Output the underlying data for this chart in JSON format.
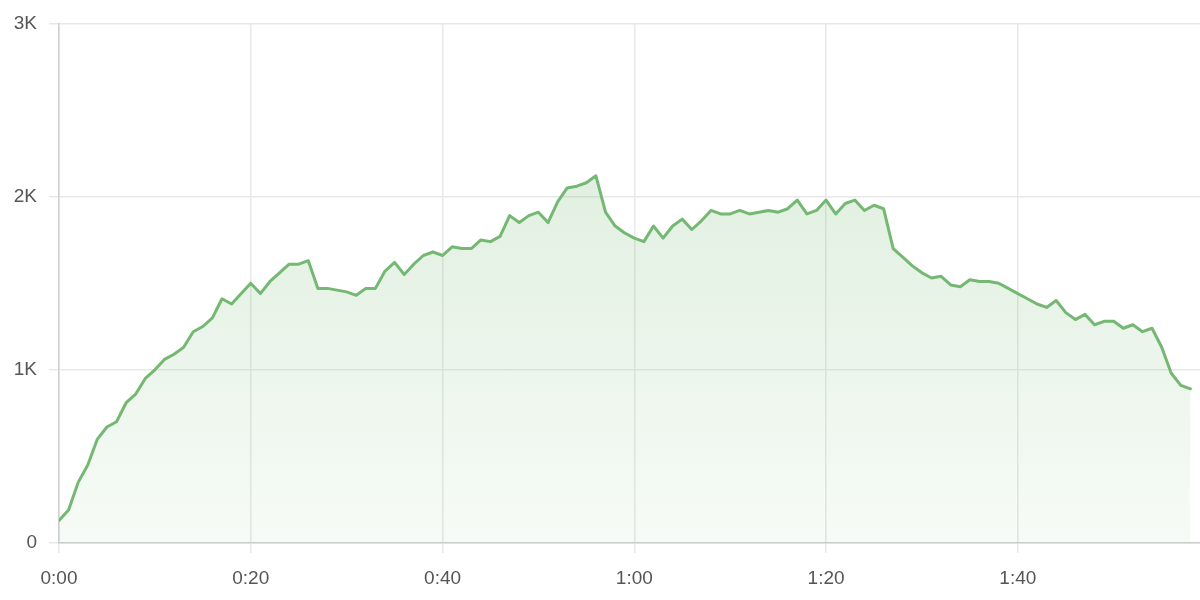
{
  "chart_data": {
    "type": "area",
    "x": [
      0,
      0.0167,
      0.0333,
      0.05,
      0.0667,
      0.0833,
      0.1,
      0.1167,
      0.1333,
      0.15,
      0.1667,
      0.1833,
      0.2,
      0.2167,
      0.2333,
      0.25,
      0.2667,
      0.2833,
      0.3,
      0.3167,
      0.3333,
      0.35,
      0.3667,
      0.3833,
      0.4,
      0.4167,
      0.4333,
      0.45,
      0.4667,
      0.4833,
      0.5,
      0.5167,
      0.5333,
      0.55,
      0.5667,
      0.5833,
      0.6,
      0.6167,
      0.6333,
      0.65,
      0.6667,
      0.6833,
      0.7,
      0.7167,
      0.7333,
      0.75,
      0.7667,
      0.7833,
      0.8,
      0.8167,
      0.8333,
      0.85,
      0.8667,
      0.8833,
      0.9,
      0.9167,
      0.9333,
      0.95,
      0.9667,
      0.9833,
      1,
      1.0167,
      1.0333,
      1.05,
      1.0667,
      1.0833,
      1.1,
      1.1167,
      1.1333,
      1.15,
      1.1667,
      1.1833,
      1.2,
      1.2167,
      1.2333,
      1.25,
      1.2667,
      1.2833,
      1.3,
      1.3167,
      1.3333,
      1.35,
      1.3667,
      1.3833,
      1.4,
      1.4167,
      1.4333,
      1.45,
      1.4667,
      1.4833,
      1.5,
      1.5167,
      1.5333,
      1.55,
      1.5667,
      1.5833,
      1.6,
      1.6167,
      1.6333,
      1.65,
      1.6667,
      1.6833,
      1.7,
      1.7167,
      1.7333,
      1.75,
      1.7667,
      1.7833,
      1.8,
      1.8167,
      1.8333,
      1.85,
      1.8667,
      1.8833,
      1.9,
      1.9167,
      1.9333,
      1.95,
      1.9667
    ],
    "series": [
      {
        "color": "#74b873",
        "values": [
          130,
          190,
          350,
          450,
          600,
          670,
          700,
          810,
          860,
          950,
          1000,
          1060,
          1090,
          1130,
          1220,
          1250,
          1300,
          1410,
          1380,
          1440,
          1500,
          1440,
          1510,
          1560,
          1610,
          1610,
          1630,
          1470,
          1470,
          1460,
          1450,
          1430,
          1470,
          1470,
          1570,
          1620,
          1550,
          1610,
          1660,
          1680,
          1660,
          1710,
          1700,
          1700,
          1750,
          1740,
          1770,
          1890,
          1850,
          1890,
          1910,
          1850,
          1970,
          2050,
          2060,
          2080,
          2120,
          1910,
          1830,
          1790,
          1760,
          1740,
          1830,
          1760,
          1830,
          1870,
          1810,
          1860,
          1920,
          1900,
          1900,
          1920,
          1900,
          1910,
          1920,
          1910,
          1930,
          1980,
          1900,
          1920,
          1980,
          1900,
          1960,
          1980,
          1920,
          1950,
          1930,
          1700,
          1650,
          1600,
          1560,
          1530,
          1540,
          1490,
          1480,
          1520,
          1510,
          1510,
          1500,
          1470,
          1440,
          1410,
          1380,
          1360,
          1400,
          1330,
          1290,
          1320,
          1260,
          1280,
          1280,
          1240,
          1260,
          1220,
          1240,
          1130,
          980,
          910,
          890
        ]
      }
    ],
    "xlim": [
      0,
      1.9833
    ],
    "xticks": [
      {
        "value": 0,
        "label": "0:00"
      },
      {
        "value": 0.3333,
        "label": "0:20"
      },
      {
        "value": 0.6667,
        "label": "0:40"
      },
      {
        "value": 1,
        "label": "1:00"
      },
      {
        "value": 1.3333,
        "label": "1:20"
      },
      {
        "value": 1.6667,
        "label": "1:40"
      }
    ],
    "ylim": [
      0,
      3000
    ],
    "yticks": [
      0,
      {
        "value": 1000,
        "label": "1K"
      },
      {
        "value": 2000,
        "label": "2K"
      },
      {
        "value": 3000,
        "label": "3K"
      }
    ],
    "grid": true,
    "marker": "none"
  }
}
